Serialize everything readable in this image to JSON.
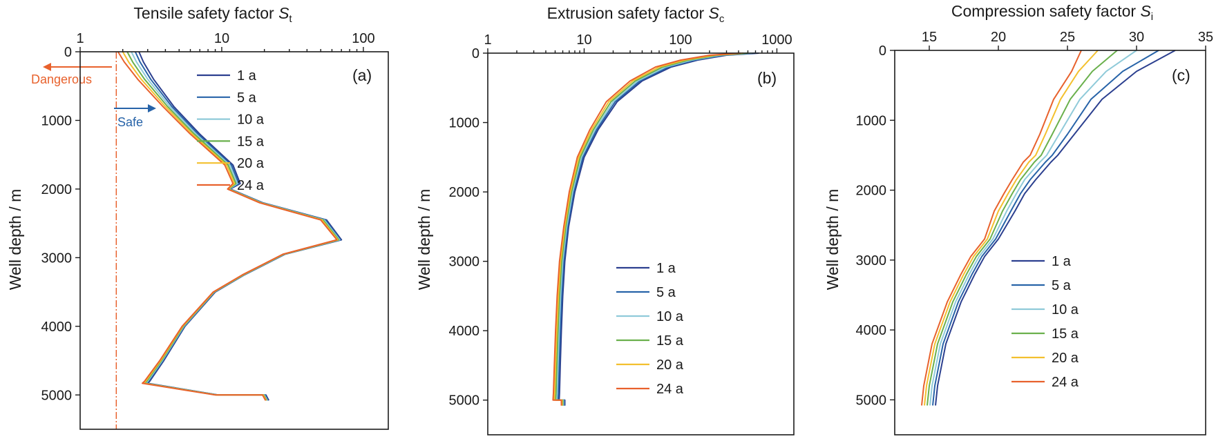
{
  "colors": {
    "1 a": "#2b3f8f",
    "5 a": "#2763a8",
    "10 a": "#8fcad9",
    "15 a": "#6ab04c",
    "20 a": "#f3c02e",
    "24 a": "#e8612c",
    "dangerous": "#e8612c",
    "safe": "#2763a8"
  },
  "chart_data": [
    {
      "type": "line",
      "title": "Tensile safety factor S_t",
      "title_main": "Tensile safety factor ",
      "title_sym": "S",
      "title_sub": "t",
      "ylabel": "Well depth / m",
      "panel_label": "(a)",
      "x_scale": "log",
      "xlim": [
        1,
        150
      ],
      "ylim": [
        0,
        5500
      ],
      "x_ticks": [
        1,
        10,
        100
      ],
      "x_tick_labels": [
        "1",
        "10",
        "100"
      ],
      "y_ticks": [
        0,
        1000,
        2000,
        3000,
        4000,
        5000
      ],
      "y_tick_labels": [
        "0",
        "1000",
        "2000",
        "3000",
        "4000",
        "5000"
      ],
      "y_inverted": true,
      "legend_position": "top-right",
      "annotations": {
        "danger_threshold_x": 1.8,
        "dangerous_text": "Dangerous",
        "safe_text": "Safe"
      },
      "series": [
        {
          "name": "1 a",
          "x": [
            2.6,
            2.8,
            3.3,
            4.6,
            7.0,
            12.0,
            13.5,
            11.5,
            19.5,
            55.0,
            70.0,
            28.0,
            14.5,
            9.0,
            5.5,
            3.9,
            3.1,
            3.0,
            9.5,
            20.5,
            21.5
          ],
          "y": [
            0,
            150,
            400,
            800,
            1200,
            1650,
            1920,
            2000,
            2200,
            2450,
            2740,
            2950,
            3250,
            3500,
            4000,
            4500,
            4800,
            4830,
            5000,
            5000,
            5080
          ]
        },
        {
          "name": "5 a",
          "x": [
            2.45,
            2.65,
            3.15,
            4.45,
            6.8,
            11.7,
            13.2,
            11.4,
            19.3,
            54.0,
            69.0,
            27.8,
            14.4,
            8.9,
            5.45,
            3.85,
            3.05,
            2.95,
            9.4,
            20.2,
            21.2
          ],
          "y": [
            0,
            150,
            400,
            800,
            1200,
            1650,
            1920,
            2000,
            2200,
            2450,
            2740,
            2950,
            3250,
            3500,
            4000,
            4500,
            4800,
            4830,
            5000,
            5000,
            5080
          ]
        },
        {
          "name": "10 a",
          "x": [
            2.3,
            2.5,
            3.0,
            4.3,
            6.6,
            11.4,
            12.9,
            11.3,
            19.1,
            53.0,
            68.0,
            27.6,
            14.3,
            8.85,
            5.4,
            3.8,
            3.0,
            2.9,
            9.3,
            20.0,
            21.0
          ],
          "y": [
            0,
            150,
            400,
            800,
            1200,
            1650,
            1920,
            2000,
            2200,
            2450,
            2740,
            2950,
            3250,
            3500,
            4000,
            4500,
            4800,
            4830,
            5000,
            5000,
            5080
          ]
        },
        {
          "name": "15 a",
          "x": [
            2.15,
            2.35,
            2.85,
            4.15,
            6.4,
            11.1,
            12.6,
            11.2,
            18.9,
            52.0,
            67.0,
            27.4,
            14.2,
            8.8,
            5.35,
            3.75,
            2.95,
            2.85,
            9.2,
            19.8,
            20.8
          ],
          "y": [
            0,
            150,
            400,
            800,
            1200,
            1650,
            1920,
            2000,
            2200,
            2450,
            2740,
            2950,
            3250,
            3500,
            4000,
            4500,
            4800,
            4830,
            5000,
            5000,
            5080
          ]
        },
        {
          "name": "20 a",
          "x": [
            2.0,
            2.2,
            2.7,
            4.0,
            6.2,
            10.8,
            12.3,
            11.1,
            18.7,
            51.0,
            66.0,
            27.2,
            14.1,
            8.75,
            5.3,
            3.7,
            2.9,
            2.8,
            9.1,
            19.6,
            20.6
          ],
          "y": [
            0,
            150,
            400,
            800,
            1200,
            1650,
            1920,
            2000,
            2200,
            2450,
            2740,
            2950,
            3250,
            3500,
            4000,
            4500,
            4800,
            4830,
            5000,
            5000,
            5080
          ]
        },
        {
          "name": "24 a",
          "x": [
            1.85,
            2.05,
            2.55,
            3.85,
            6.0,
            10.5,
            12.0,
            11.0,
            18.5,
            50.0,
            65.0,
            27.0,
            14.0,
            8.7,
            5.25,
            3.65,
            2.85,
            2.75,
            9.0,
            19.4,
            20.4
          ],
          "y": [
            0,
            150,
            400,
            800,
            1200,
            1650,
            1920,
            2000,
            2200,
            2450,
            2740,
            2950,
            3250,
            3500,
            4000,
            4500,
            4800,
            4830,
            5000,
            5000,
            5080
          ]
        }
      ]
    },
    {
      "type": "line",
      "title": "Extrusion safety factor S_c",
      "title_main": "Extrusion safety factor ",
      "title_sym": "S",
      "title_sub": "c",
      "ylabel": "Well depth / m",
      "panel_label": "(b)",
      "x_scale": "log",
      "xlim": [
        1,
        1500
      ],
      "ylim": [
        0,
        5500
      ],
      "x_ticks": [
        1,
        10,
        100,
        1000
      ],
      "x_tick_labels": [
        "1",
        "10",
        "100",
        "1000"
      ],
      "y_ticks": [
        0,
        1000,
        2000,
        3000,
        4000,
        5000
      ],
      "y_tick_labels": [
        "0",
        "1000",
        "2000",
        "3000",
        "4000",
        "5000"
      ],
      "y_inverted": true,
      "legend_position": "bottom-right",
      "series": [
        {
          "name": "1 a",
          "x": [
            650,
            300,
            150,
            80,
            40,
            22,
            14,
            10,
            8,
            6.9,
            6.3,
            6.0,
            5.8,
            5.65,
            5.55,
            5.5,
            6.3,
            6.3
          ],
          "y": [
            0,
            30,
            100,
            200,
            400,
            700,
            1100,
            1500,
            2000,
            2500,
            3000,
            3500,
            4000,
            4500,
            4900,
            5000,
            5000,
            5080
          ]
        },
        {
          "name": "5 a",
          "x": [
            600,
            280,
            140,
            75,
            38,
            21,
            13.5,
            9.7,
            7.8,
            6.75,
            6.15,
            5.85,
            5.65,
            5.5,
            5.4,
            5.35,
            6.2,
            6.2
          ],
          "y": [
            0,
            30,
            100,
            200,
            400,
            700,
            1100,
            1500,
            2000,
            2500,
            3000,
            3500,
            4000,
            4500,
            4900,
            5000,
            5000,
            5080
          ]
        },
        {
          "name": "10 a",
          "x": [
            550,
            260,
            130,
            70,
            36,
            20,
            13,
            9.4,
            7.6,
            6.6,
            6.0,
            5.7,
            5.5,
            5.35,
            5.25,
            5.2,
            6.1,
            6.1
          ],
          "y": [
            0,
            30,
            100,
            200,
            400,
            700,
            1100,
            1500,
            2000,
            2500,
            3000,
            3500,
            4000,
            4500,
            4900,
            5000,
            5000,
            5080
          ]
        },
        {
          "name": "15 a",
          "x": [
            500,
            240,
            120,
            65,
            34,
            19,
            12.5,
            9.1,
            7.4,
            6.45,
            5.85,
            5.55,
            5.35,
            5.2,
            5.1,
            5.05,
            6.0,
            6.0
          ],
          "y": [
            0,
            30,
            100,
            200,
            400,
            700,
            1100,
            1500,
            2000,
            2500,
            3000,
            3500,
            4000,
            4500,
            4900,
            5000,
            5000,
            5080
          ]
        },
        {
          "name": "20 a",
          "x": [
            450,
            220,
            110,
            60,
            32,
            18,
            12,
            8.8,
            7.2,
            6.3,
            5.7,
            5.4,
            5.2,
            5.05,
            4.95,
            4.9,
            5.9,
            5.9
          ],
          "y": [
            0,
            30,
            100,
            200,
            400,
            700,
            1100,
            1500,
            2000,
            2500,
            3000,
            3500,
            4000,
            4500,
            4900,
            5000,
            5000,
            5080
          ]
        },
        {
          "name": "24 a",
          "x": [
            420,
            200,
            100,
            55,
            30,
            17,
            11.5,
            8.5,
            7.0,
            6.15,
            5.55,
            5.25,
            5.05,
            4.9,
            4.8,
            4.75,
            5.8,
            5.8
          ],
          "y": [
            0,
            30,
            100,
            200,
            400,
            700,
            1100,
            1500,
            2000,
            2500,
            3000,
            3500,
            4000,
            4500,
            4900,
            5000,
            5000,
            5080
          ]
        }
      ]
    },
    {
      "type": "line",
      "title": "Compression safety factor S_i",
      "title_main": "Compression safety factor ",
      "title_sym": "S",
      "title_sub": "i",
      "ylabel": "Well depth / m",
      "panel_label": "(c)",
      "x_scale": "linear",
      "xlim": [
        12.5,
        35
      ],
      "ylim": [
        0,
        5500
      ],
      "x_ticks": [
        15,
        20,
        25,
        30,
        35
      ],
      "x_tick_labels": [
        "15",
        "20",
        "25",
        "30",
        "35"
      ],
      "y_ticks": [
        0,
        1000,
        2000,
        3000,
        4000,
        5000
      ],
      "y_tick_labels": [
        "0",
        "1000",
        "2000",
        "3000",
        "4000",
        "5000"
      ],
      "y_inverted": true,
      "legend_position": "bottom-right",
      "series": [
        {
          "name": "1 a",
          "x": [
            32.8,
            30.0,
            27.5,
            25.5,
            24.3,
            23.8,
            22.7,
            21.9,
            21.2,
            20.0,
            19.0,
            18.3,
            17.3,
            16.2,
            15.6,
            15.45
          ],
          "y": [
            0,
            300,
            700,
            1200,
            1500,
            1600,
            1850,
            2050,
            2300,
            2700,
            2950,
            3200,
            3600,
            4200,
            4800,
            5080
          ]
        },
        {
          "name": "5 a",
          "x": [
            31.6,
            29.0,
            26.7,
            25.0,
            23.9,
            23.4,
            22.3,
            21.6,
            20.9,
            19.8,
            18.8,
            18.1,
            17.1,
            16.0,
            15.4,
            15.25
          ],
          "y": [
            0,
            300,
            700,
            1200,
            1500,
            1600,
            1850,
            2050,
            2300,
            2700,
            2950,
            3200,
            3600,
            4200,
            4800,
            5080
          ]
        },
        {
          "name": "10 a",
          "x": [
            30.0,
            27.8,
            25.9,
            24.4,
            23.5,
            23.0,
            21.9,
            21.3,
            20.6,
            19.6,
            18.6,
            17.9,
            16.9,
            15.8,
            15.2,
            15.05
          ],
          "y": [
            0,
            300,
            700,
            1200,
            1500,
            1600,
            1850,
            2050,
            2300,
            2700,
            2950,
            3200,
            3600,
            4200,
            4800,
            5080
          ]
        },
        {
          "name": "15 a",
          "x": [
            28.6,
            26.8,
            25.2,
            23.9,
            23.1,
            22.6,
            21.6,
            21.0,
            20.3,
            19.4,
            18.4,
            17.7,
            16.7,
            15.6,
            15.0,
            14.85
          ],
          "y": [
            0,
            300,
            700,
            1200,
            1500,
            1600,
            1850,
            2050,
            2300,
            2700,
            2950,
            3200,
            3600,
            4200,
            4800,
            5080
          ]
        },
        {
          "name": "20 a",
          "x": [
            27.2,
            25.8,
            24.5,
            23.4,
            22.7,
            22.2,
            21.3,
            20.7,
            20.0,
            19.2,
            18.2,
            17.5,
            16.5,
            15.4,
            14.8,
            14.65
          ],
          "y": [
            0,
            300,
            700,
            1200,
            1500,
            1600,
            1850,
            2050,
            2300,
            2700,
            2950,
            3200,
            3600,
            4200,
            4800,
            5080
          ]
        },
        {
          "name": "24 a",
          "x": [
            26.0,
            25.3,
            24.0,
            23.0,
            22.3,
            21.8,
            21.0,
            20.4,
            19.7,
            19.0,
            18.0,
            17.3,
            16.3,
            15.2,
            14.6,
            14.45
          ],
          "y": [
            0,
            300,
            700,
            1200,
            1500,
            1600,
            1850,
            2050,
            2300,
            2700,
            2950,
            3200,
            3600,
            4200,
            4800,
            5080
          ]
        }
      ]
    }
  ]
}
